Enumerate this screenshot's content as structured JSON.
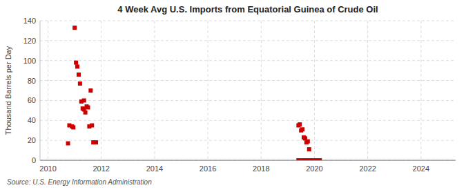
{
  "chart_data": {
    "type": "scatter",
    "title": "4 Week Avg U.S. Imports from Equatorial Guinea of Crude Oil",
    "ylabel": "Thousand Barrels per Day",
    "source": "Source: U.S. Energy Information Administration",
    "x": [
      2010.75,
      2010.8,
      2010.9,
      2010.95,
      2011.0,
      2011.05,
      2011.1,
      2011.15,
      2011.2,
      2011.25,
      2011.3,
      2011.35,
      2011.4,
      2011.45,
      2011.5,
      2011.55,
      2011.6,
      2011.65,
      2011.7,
      2011.75,
      2011.8,
      2011.35,
      2019.4,
      2019.45,
      2019.5,
      2019.55,
      2019.6,
      2019.65,
      2019.7,
      2019.75,
      2019.8,
      2019.4,
      2019.55,
      2019.65,
      2019.75,
      2019.85,
      2019.9,
      2020.0,
      2020.05,
      2020.1,
      2020.15,
      2020.2
    ],
    "values": [
      17,
      35,
      34,
      33,
      133,
      98,
      94,
      86,
      77,
      59,
      52,
      51,
      48,
      54,
      53,
      34,
      70,
      35,
      18,
      18,
      18,
      60,
      35,
      36,
      30,
      31,
      23,
      22,
      18,
      19,
      11,
      0,
      0,
      0,
      0,
      0,
      0,
      0,
      0,
      0,
      0,
      0
    ],
    "color": "#cc0000",
    "marker": "square",
    "xlim": [
      2009.7,
      2025.3
    ],
    "xticks": [
      2010,
      2012,
      2014,
      2016,
      2018,
      2020,
      2022,
      2024
    ],
    "ylim": [
      0,
      140
    ],
    "yticks": [
      0,
      20,
      40,
      60,
      80,
      100,
      120,
      140
    ],
    "grid": true
  }
}
